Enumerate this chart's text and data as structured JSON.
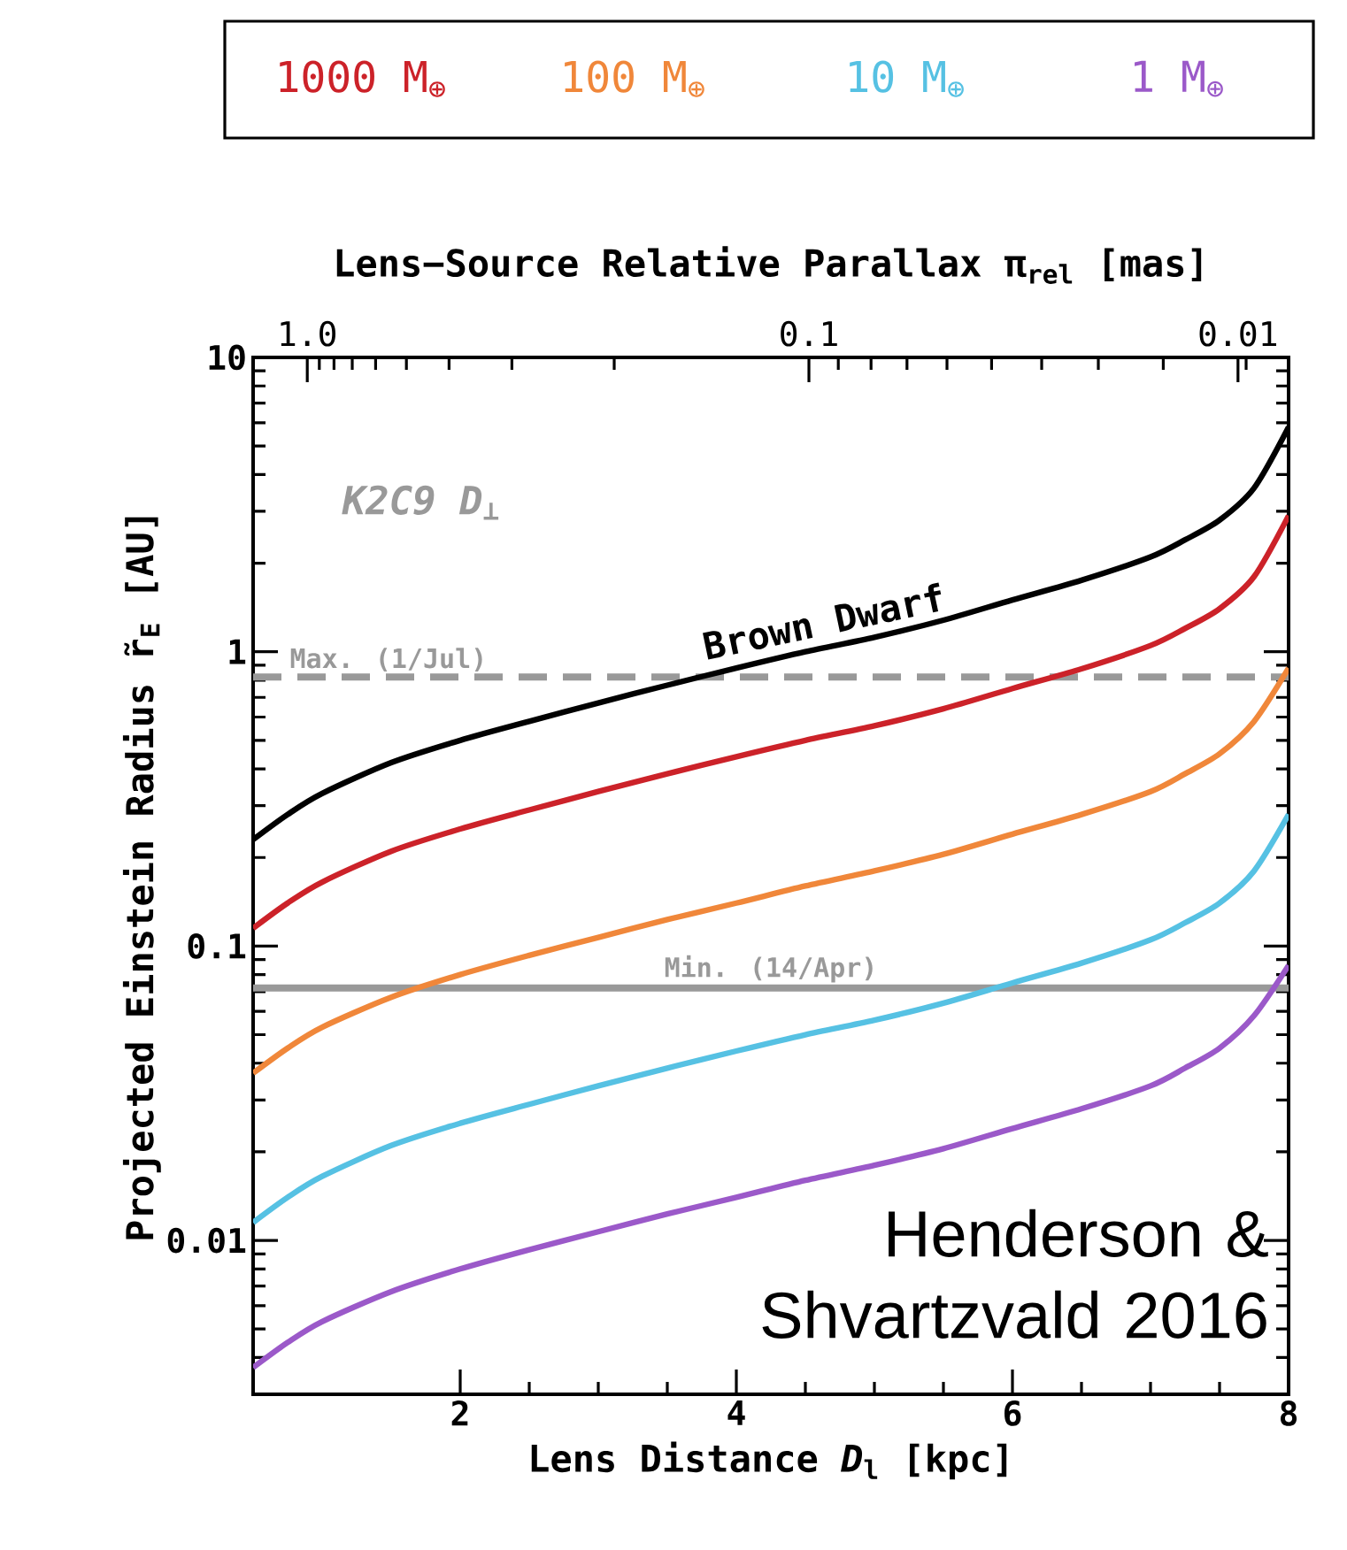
{
  "chart_data": {
    "type": "line",
    "xlabel": "Lens Distance *D*$_{l}$ [kpc]",
    "ylabel": "Projected Einstein Radius r̃$_{E}$ [AU]",
    "x2label": "Lens−Source Relative Parallax π$_{rel}$ [mas]",
    "x": [
      0.5,
      0.75,
      1,
      1.5,
      2,
      2.5,
      3,
      3.5,
      4,
      4.5,
      5,
      5.5,
      6,
      6.5,
      7,
      7.25,
      7.5,
      7.75,
      8
    ],
    "series": [
      {
        "name": "Brown Dwarf",
        "color": "#000000",
        "values": [
          0.23,
          0.28,
          0.33,
          0.42,
          0.5,
          0.58,
          0.67,
          0.77,
          0.88,
          1.0,
          1.12,
          1.28,
          1.5,
          1.75,
          2.1,
          2.4,
          2.8,
          3.6,
          5.8
        ]
      },
      {
        "name": "1000 M$_{⊕}$",
        "color": "#cc2229",
        "values": [
          0.115,
          0.14,
          0.165,
          0.21,
          0.25,
          0.29,
          0.335,
          0.385,
          0.44,
          0.5,
          0.56,
          0.64,
          0.75,
          0.875,
          1.05,
          1.2,
          1.4,
          1.8,
          2.9
        ]
      },
      {
        "name": "100 M$_{⊕}$",
        "color": "#f0873a",
        "values": [
          0.037,
          0.045,
          0.053,
          0.067,
          0.08,
          0.093,
          0.107,
          0.123,
          0.14,
          0.16,
          0.18,
          0.205,
          0.24,
          0.28,
          0.335,
          0.385,
          0.45,
          0.58,
          0.88
        ]
      },
      {
        "name": "10 M$_{⊕}$",
        "color": "#56c1e3",
        "values": [
          0.0115,
          0.014,
          0.0165,
          0.021,
          0.025,
          0.029,
          0.0335,
          0.0385,
          0.044,
          0.05,
          0.056,
          0.064,
          0.075,
          0.0875,
          0.105,
          0.12,
          0.14,
          0.18,
          0.28
        ]
      },
      {
        "name": "1 M$_{⊕}$",
        "color": "#9b59c9",
        "values": [
          0.0037,
          0.0045,
          0.0053,
          0.0067,
          0.008,
          0.0093,
          0.0107,
          0.0123,
          0.014,
          0.016,
          0.018,
          0.0205,
          0.024,
          0.028,
          0.0335,
          0.0385,
          0.045,
          0.058,
          0.086
        ]
      }
    ],
    "xlim": [
      0.5,
      8
    ],
    "xticks": [
      2,
      4,
      6,
      8
    ],
    "ylim": [
      0.003,
      10
    ],
    "yticks": [
      {
        "value": 0.003,
        "label": null
      },
      {
        "value": 0.004,
        "label": null
      },
      {
        "value": 0.005,
        "label": null
      },
      {
        "value": 0.006,
        "label": null
      },
      {
        "value": 0.007,
        "label": null
      },
      {
        "value": 0.008,
        "label": null
      },
      {
        "value": 0.009,
        "label": null
      },
      0.01,
      {
        "value": 0.02,
        "label": null
      },
      {
        "value": 0.03,
        "label": null
      },
      {
        "value": 0.04,
        "label": null
      },
      {
        "value": 0.05,
        "label": null
      },
      {
        "value": 0.06,
        "label": null
      },
      {
        "value": 0.07,
        "label": null
      },
      {
        "value": 0.08,
        "label": null
      },
      {
        "value": 0.09,
        "label": null
      },
      0.1,
      {
        "value": 0.2,
        "label": null
      },
      {
        "value": 0.3,
        "label": null
      },
      {
        "value": 0.4,
        "label": null
      },
      {
        "value": 0.5,
        "label": null
      },
      {
        "value": 0.6,
        "label": null
      },
      {
        "value": 0.7,
        "label": null
      },
      {
        "value": 0.8,
        "label": null
      },
      {
        "value": 0.9,
        "label": null
      },
      1,
      {
        "value": 2,
        "label": null
      },
      {
        "value": 3,
        "label": null
      },
      {
        "value": 4,
        "label": null
      },
      {
        "value": 5,
        "label": null
      },
      {
        "value": 6,
        "label": null
      },
      {
        "value": 7,
        "label": null
      },
      {
        "value": 8,
        "label": null
      },
      {
        "value": 9,
        "label": null
      },
      10
    ],
    "log": "y",
    "ref_lines": [
      {
        "axis": "y",
        "value": 0.82,
        "label": "Max. (1/Jul)",
        "color": "#999999",
        "line_style": "dashed"
      },
      {
        "axis": "y",
        "value": 0.072,
        "label": "Min. (14/Apr)",
        "color": "#999999",
        "line_style": "solid"
      }
    ],
    "annotations": [
      "K2C9 D$_{⊥}$",
      "Henderson & Shvartzvald 2016",
      "1.0",
      "0.1",
      "0.01"
    ],
    "legend": "top"
  }
}
